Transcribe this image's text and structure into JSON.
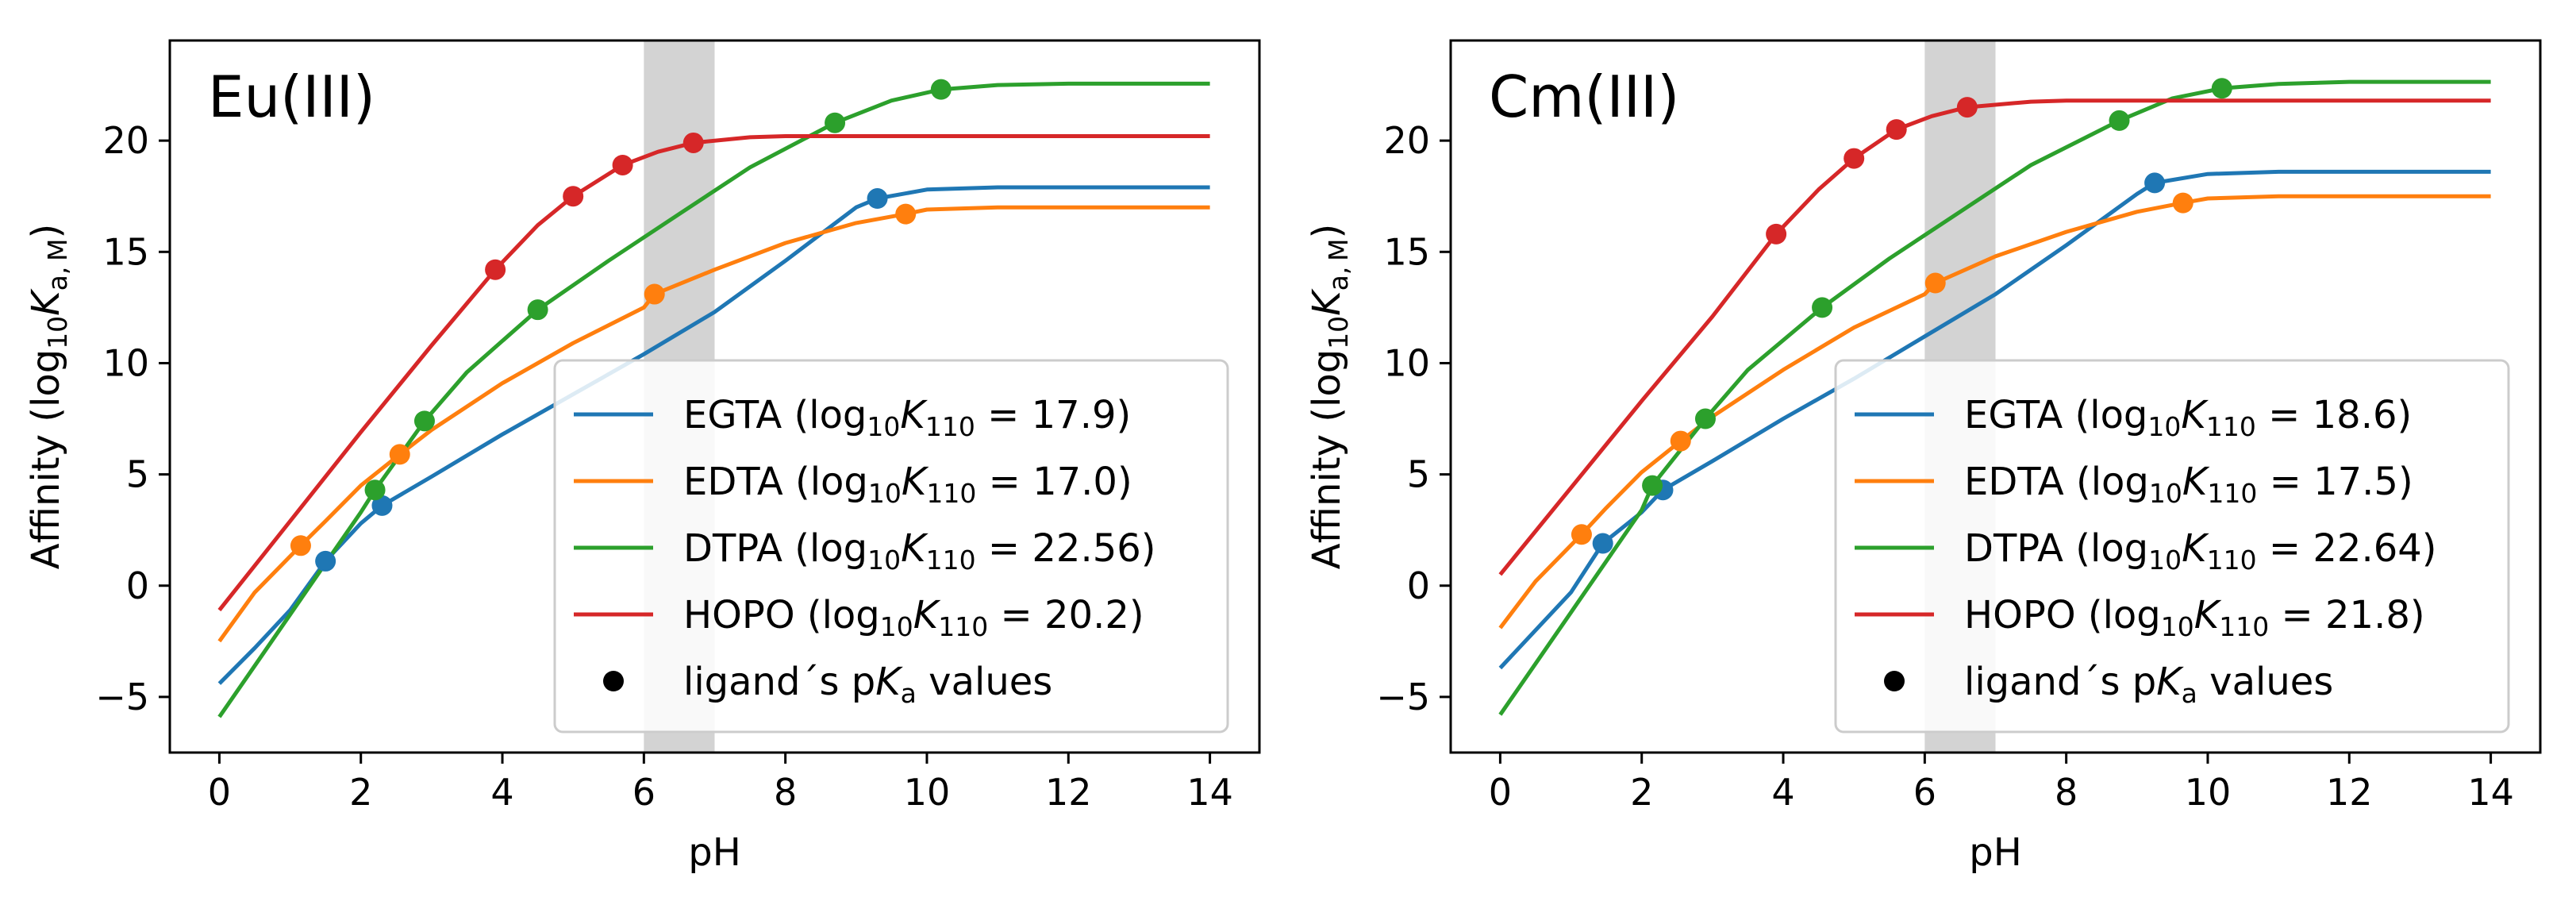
{
  "chart_data": [
    {
      "type": "line",
      "panel_label": "Eu(III)",
      "xlabel": "pH",
      "ylabel": "Affinity (log10Ka,M)",
      "xlim": [
        -0.7,
        14.7
      ],
      "ylim": [
        -7.5,
        24.5
      ],
      "xticks": [
        "0",
        "2",
        "4",
        "6",
        "8",
        "10",
        "12",
        "14"
      ],
      "yticks": [
        "−5",
        "0",
        "5",
        "10",
        "15",
        "20"
      ],
      "shaded_region": [
        6,
        7
      ],
      "legend_position": "lower right",
      "series": [
        {
          "name": "EGTA (log10K110 = 17.9)",
          "color": "#1f77b4",
          "curve": [
            [
              0,
              -4.4
            ],
            [
              0.5,
              -2.8
            ],
            [
              1,
              -1.1
            ],
            [
              1.5,
              1.1
            ],
            [
              2,
              2.8
            ],
            [
              2.3,
              3.6
            ],
            [
              3,
              4.9
            ],
            [
              4,
              6.8
            ],
            [
              5,
              8.6
            ],
            [
              6,
              10.4
            ],
            [
              7,
              12.3
            ],
            [
              8,
              14.6
            ],
            [
              9,
              17.0
            ],
            [
              9.3,
              17.4
            ],
            [
              10,
              17.8
            ],
            [
              11,
              17.9
            ],
            [
              12,
              17.9
            ],
            [
              14,
              17.9
            ]
          ],
          "pka_points": [
            [
              1.5,
              1.1
            ],
            [
              2.3,
              3.6
            ],
            [
              9.3,
              17.4
            ]
          ]
        },
        {
          "name": "EDTA (log10K110 = 17.0)",
          "color": "#ff7f0e",
          "curve": [
            [
              0,
              -2.5
            ],
            [
              0.5,
              -0.3
            ],
            [
              1.15,
              1.8
            ],
            [
              1.5,
              2.9
            ],
            [
              2,
              4.5
            ],
            [
              2.55,
              5.9
            ],
            [
              3,
              7.0
            ],
            [
              4,
              9.1
            ],
            [
              5,
              10.9
            ],
            [
              6,
              12.5
            ],
            [
              6.15,
              13.1
            ],
            [
              7,
              14.2
            ],
            [
              8,
              15.4
            ],
            [
              9,
              16.3
            ],
            [
              9.7,
              16.7
            ],
            [
              10,
              16.9
            ],
            [
              11,
              17.0
            ],
            [
              14,
              17.0
            ]
          ],
          "pka_points": [
            [
              1.15,
              1.8
            ],
            [
              2.55,
              5.9
            ],
            [
              6.15,
              13.1
            ],
            [
              9.7,
              16.7
            ]
          ]
        },
        {
          "name": "DTPA (log10K110 = 22.56)",
          "color": "#2ca02c",
          "curve": [
            [
              0,
              -5.9
            ],
            [
              0.5,
              -3.6
            ],
            [
              1,
              -1.3
            ],
            [
              1.5,
              1.0
            ],
            [
              2,
              3.3
            ],
            [
              2.2,
              4.3
            ],
            [
              2.9,
              7.4
            ],
            [
              3.5,
              9.6
            ],
            [
              4.5,
              12.4
            ],
            [
              5.5,
              14.6
            ],
            [
              6.5,
              16.7
            ],
            [
              7.5,
              18.8
            ],
            [
              8.7,
              20.8
            ],
            [
              9.5,
              21.8
            ],
            [
              10.2,
              22.3
            ],
            [
              11,
              22.5
            ],
            [
              12,
              22.56
            ],
            [
              14,
              22.56
            ]
          ],
          "pka_points": [
            [
              2.2,
              4.3
            ],
            [
              2.9,
              7.4
            ],
            [
              4.5,
              12.4
            ],
            [
              8.7,
              20.8
            ],
            [
              10.2,
              22.3
            ]
          ]
        },
        {
          "name": "HOPO (log10K110 = 20.2)",
          "color": "#d62728",
          "curve": [
            [
              0,
              -1.1
            ],
            [
              1,
              2.9
            ],
            [
              2,
              6.9
            ],
            [
              3,
              10.8
            ],
            [
              3.9,
              14.2
            ],
            [
              4.5,
              16.2
            ],
            [
              5,
              17.5
            ],
            [
              5.7,
              18.9
            ],
            [
              6.2,
              19.5
            ],
            [
              6.7,
              19.9
            ],
            [
              7.5,
              20.15
            ],
            [
              8,
              20.2
            ],
            [
              10,
              20.2
            ],
            [
              14,
              20.2
            ]
          ],
          "pka_points": [
            [
              3.9,
              14.2
            ],
            [
              5.0,
              17.5
            ],
            [
              5.7,
              18.9
            ],
            [
              6.7,
              19.9
            ]
          ]
        }
      ],
      "legend_marker_label": "ligand´s pKa values"
    },
    {
      "type": "line",
      "panel_label": "Cm(III)",
      "xlabel": "pH",
      "ylabel": "Affinity (log10Ka,M)",
      "xlim": [
        -0.7,
        14.7
      ],
      "ylim": [
        -7.5,
        24.5
      ],
      "xticks": [
        "0",
        "2",
        "4",
        "6",
        "8",
        "10",
        "12",
        "14"
      ],
      "yticks": [
        "−5",
        "0",
        "5",
        "10",
        "15",
        "20"
      ],
      "shaded_region": [
        6,
        7
      ],
      "legend_position": "lower right",
      "series": [
        {
          "name": "EGTA (log10K110 = 18.6)",
          "color": "#1f77b4",
          "curve": [
            [
              0,
              -3.7
            ],
            [
              0.5,
              -2.0
            ],
            [
              1,
              -0.3
            ],
            [
              1.45,
              1.9
            ],
            [
              2,
              3.3
            ],
            [
              2.3,
              4.3
            ],
            [
              3,
              5.6
            ],
            [
              4,
              7.5
            ],
            [
              5,
              9.3
            ],
            [
              6,
              11.2
            ],
            [
              7,
              13.1
            ],
            [
              8,
              15.3
            ],
            [
              9,
              17.6
            ],
            [
              9.25,
              18.1
            ],
            [
              10,
              18.5
            ],
            [
              11,
              18.6
            ],
            [
              14,
              18.6
            ]
          ],
          "pka_points": [
            [
              1.45,
              1.9
            ],
            [
              2.3,
              4.3
            ],
            [
              9.25,
              18.1
            ]
          ]
        },
        {
          "name": "EDTA (log10K110 = 17.5)",
          "color": "#ff7f0e",
          "curve": [
            [
              0,
              -1.9
            ],
            [
              0.5,
              0.2
            ],
            [
              1.15,
              2.3
            ],
            [
              1.5,
              3.5
            ],
            [
              2,
              5.1
            ],
            [
              2.55,
              6.5
            ],
            [
              3,
              7.6
            ],
            [
              4,
              9.7
            ],
            [
              5,
              11.6
            ],
            [
              6,
              13.1
            ],
            [
              6.15,
              13.6
            ],
            [
              7,
              14.8
            ],
            [
              8,
              15.9
            ],
            [
              9,
              16.8
            ],
            [
              9.65,
              17.2
            ],
            [
              10,
              17.4
            ],
            [
              11,
              17.5
            ],
            [
              14,
              17.5
            ]
          ],
          "pka_points": [
            [
              1.15,
              2.3
            ],
            [
              2.55,
              6.5
            ],
            [
              6.15,
              13.6
            ],
            [
              9.65,
              17.2
            ]
          ]
        },
        {
          "name": "DTPA (log10K110 = 22.64)",
          "color": "#2ca02c",
          "curve": [
            [
              0,
              -5.8
            ],
            [
              0.5,
              -3.5
            ],
            [
              1,
              -1.2
            ],
            [
              1.5,
              1.1
            ],
            [
              2,
              3.4
            ],
            [
              2.15,
              4.5
            ],
            [
              2.9,
              7.5
            ],
            [
              3.5,
              9.7
            ],
            [
              4.55,
              12.5
            ],
            [
              5.5,
              14.7
            ],
            [
              6.5,
              16.8
            ],
            [
              7.5,
              18.9
            ],
            [
              8.75,
              20.9
            ],
            [
              9.5,
              21.9
            ],
            [
              10.2,
              22.35
            ],
            [
              11,
              22.55
            ],
            [
              12,
              22.64
            ],
            [
              14,
              22.64
            ]
          ],
          "pka_points": [
            [
              2.15,
              4.5
            ],
            [
              2.9,
              7.5
            ],
            [
              4.55,
              12.5
            ],
            [
              8.75,
              20.9
            ],
            [
              10.2,
              22.35
            ]
          ]
        },
        {
          "name": "HOPO (log10K110 = 21.8)",
          "color": "#d62728",
          "curve": [
            [
              0,
              0.5
            ],
            [
              1,
              4.4
            ],
            [
              2,
              8.3
            ],
            [
              3,
              12.1
            ],
            [
              3.9,
              15.8
            ],
            [
              4.5,
              17.8
            ],
            [
              5,
              19.2
            ],
            [
              5.6,
              20.5
            ],
            [
              6.1,
              21.1
            ],
            [
              6.6,
              21.5
            ],
            [
              7.5,
              21.75
            ],
            [
              8,
              21.8
            ],
            [
              10,
              21.8
            ],
            [
              14,
              21.8
            ]
          ],
          "pka_points": [
            [
              3.9,
              15.8
            ],
            [
              5.0,
              19.2
            ],
            [
              5.6,
              20.5
            ],
            [
              6.6,
              21.5
            ]
          ]
        }
      ],
      "legend_marker_label": "ligand´s pKa values"
    }
  ]
}
